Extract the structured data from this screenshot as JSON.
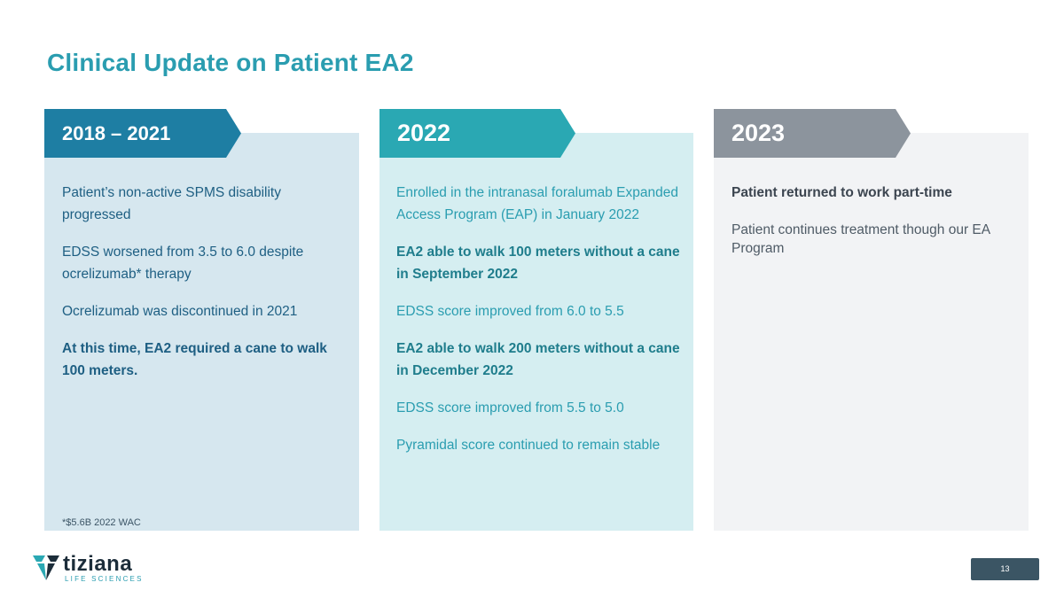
{
  "title": "Clinical Update on Patient EA2",
  "colors": {
    "title": "#2a9db0",
    "col1_header": "#1e7ea3",
    "col2_header": "#2aa8b3",
    "col3_header": "#8c949d"
  },
  "columns": [
    {
      "header": "2018 – 2021",
      "items": [
        "Patient’s non-active SPMS disability progressed",
        "EDSS worsened from 3.5 to 6.0 despite ocrelizumab* therapy",
        "Ocrelizumab was discontinued in 2021",
        "At this time, EA2 required a cane to walk 100 meters."
      ],
      "footnote": "*$5.6B 2022 WAC"
    },
    {
      "header": "2022",
      "items": [
        "Enrolled in the intranasal foralumab Expanded Access Program (EAP) in January 2022",
        "EA2 able to walk 100 meters without a cane in September 2022",
        "EDSS score improved from 6.0 to 5.5",
        "EA2 able to walk 200 meters without a cane in December 2022",
        "EDSS score improved from 5.5 to 5.0",
        "Pyramidal score continued to remain stable"
      ]
    },
    {
      "header": "2023",
      "items": [
        "Patient returned to work part-time",
        "Patient continues treatment though our EA Program"
      ]
    }
  ],
  "logo": {
    "name": "tiziana",
    "subtitle": "LIFE SCIENCES",
    "icon": "tiziana-logo-icon"
  },
  "page_number": "13"
}
